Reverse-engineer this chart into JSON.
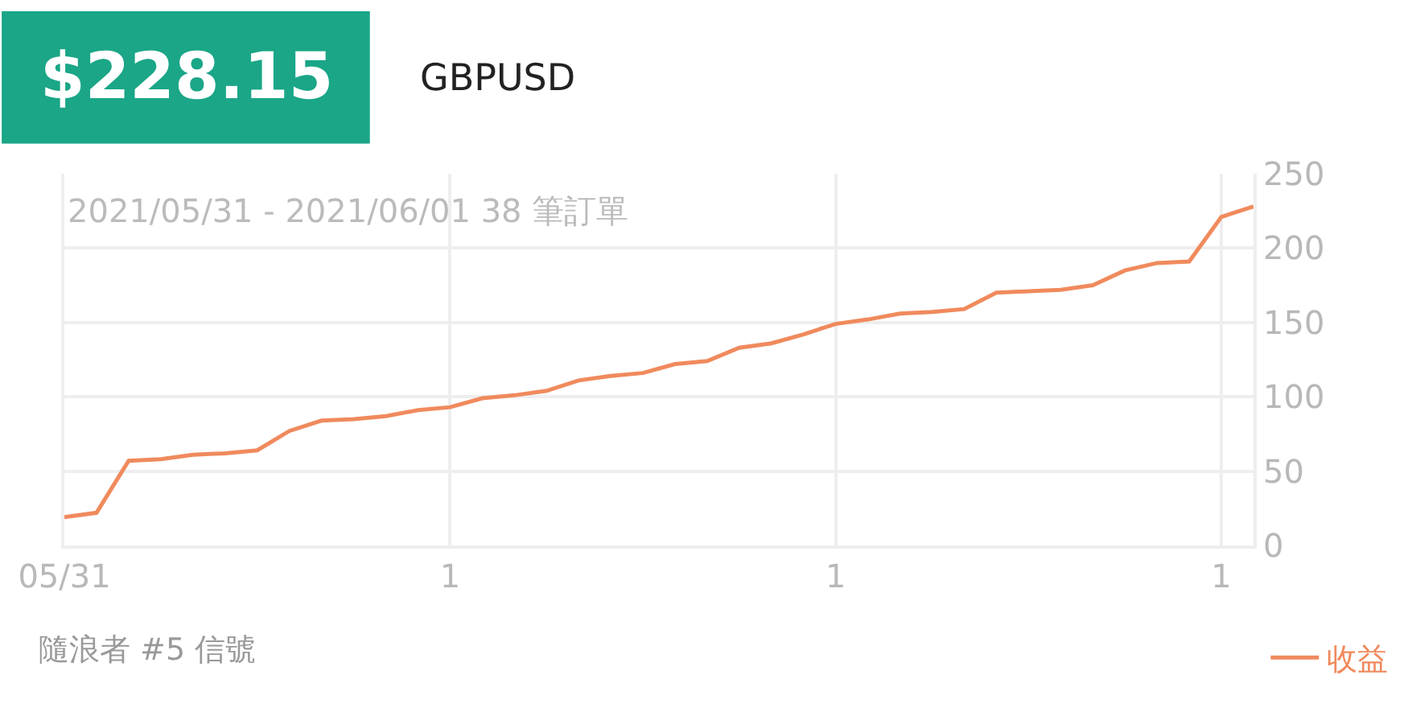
{
  "chart_data": {
    "type": "line",
    "title": "$228.15",
    "subtitle": "GBPUSD",
    "annotations": [
      "2021/05/31 - 2021/06/01 38 筆訂單",
      "隨浪者 #5 信號"
    ],
    "categories": [
      "05/31",
      null,
      null,
      null,
      null,
      null,
      null,
      null,
      null,
      null,
      null,
      null,
      "1",
      null,
      null,
      null,
      null,
      null,
      null,
      null,
      null,
      null,
      null,
      null,
      "1",
      null,
      null,
      null,
      null,
      null,
      null,
      null,
      null,
      null,
      null,
      null,
      "1",
      null
    ],
    "series": [
      {
        "name": "收益",
        "color": "#f08a5d",
        "values": [
          19,
          22,
          57,
          58,
          61,
          62,
          64,
          77,
          84,
          85,
          87,
          91,
          93,
          99,
          101,
          104,
          111,
          114,
          116,
          122,
          124,
          133,
          136,
          142,
          149,
          152,
          156,
          157,
          159,
          170,
          171,
          172,
          175,
          185,
          190,
          191,
          221,
          228
        ]
      }
    ],
    "ylim": [
      0,
      250
    ],
    "yticks": [
      0,
      50,
      100,
      150,
      200,
      250
    ],
    "grid": true,
    "legend": "bottom right",
    "marker": "none",
    "line_style": "solid"
  }
}
